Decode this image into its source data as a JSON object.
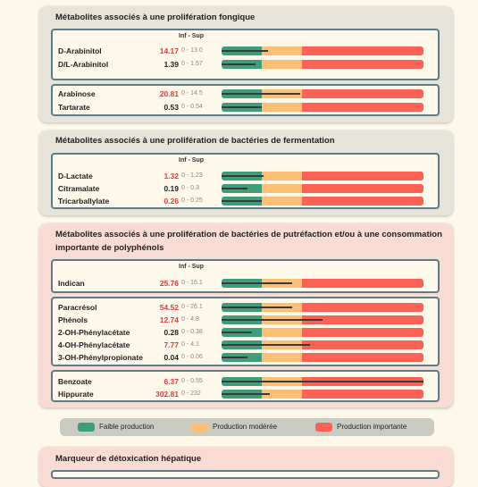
{
  "colors": {
    "low": "#3e9e7a",
    "moderate": "#fbbf75",
    "high": "#fa6256"
  },
  "sections": [
    {
      "title": "Métabolites associés à une prolifération fongique",
      "header": "Inf - Sup",
      "groups": [
        [
          {
            "name": "D-Arabinitol",
            "value": "14.17",
            "ref": "0 - 13.0",
            "status": "high",
            "level": 0.23
          },
          {
            "name": "D/L-Arabinitol",
            "value": "1.39",
            "ref": "0 - 1.57",
            "status": "normal",
            "level": 0.17
          }
        ],
        [
          {
            "name": "Arabinose",
            "value": "20.81",
            "ref": "0 - 14.5",
            "status": "high",
            "level": 0.39
          },
          {
            "name": "Tartarate",
            "value": "0.53",
            "ref": "0 - 0.54",
            "status": "normal",
            "level": 0.2
          }
        ]
      ]
    },
    {
      "title": "Métabolites associés à une prolifération de bactéries de fermentation",
      "header": "Inf - Sup",
      "groups": [
        [
          {
            "name": "D-Lactate",
            "value": "1.32",
            "ref": "0 - 1.23",
            "status": "high",
            "level": 0.21
          },
          {
            "name": "Citramalate",
            "value": "0.19",
            "ref": "0 - 0.3",
            "status": "normal",
            "level": 0.13
          },
          {
            "name": "Tricarballylate",
            "value": "0.26",
            "ref": "0 - 0.25",
            "status": "high",
            "level": 0.2
          }
        ]
      ]
    },
    {
      "title": "Métabolites associés à une prolifération de bactéries de putréfaction et/ou à une consommation importante de polyphénols",
      "header": "Inf - Sup",
      "groups": [
        [
          {
            "name": "Indican",
            "value": "25.76",
            "ref": "0 - 16.1",
            "status": "high",
            "level": 0.35
          }
        ],
        [
          {
            "name": "Paracrésol",
            "value": "54.52",
            "ref": "0 - 26.1",
            "status": "high",
            "level": 0.35
          },
          {
            "name": "Phénols",
            "value": "12.74",
            "ref": "0 - 4.8",
            "status": "high",
            "level": 0.5
          },
          {
            "name": "2-OH-Phénylacétate",
            "value": "0.28",
            "ref": "0 - 0.38",
            "status": "normal",
            "level": 0.15
          },
          {
            "name": "4-OH-Phénylacétate",
            "value": "7.77",
            "ref": "0 - 4.1",
            "status": "high",
            "level": 0.44
          },
          {
            "name": "3-OH-Phénylpropionate",
            "value": "0.04",
            "ref": "0 - 0.06",
            "status": "normal",
            "level": 0.13
          }
        ],
        [
          {
            "name": "Benzoate",
            "value": "6.37",
            "ref": "0 - 0.55",
            "status": "high",
            "level": 1.0
          },
          {
            "name": "Hippurate",
            "value": "302.81",
            "ref": "0 - 232",
            "status": "high",
            "level": 0.24
          }
        ]
      ]
    },
    {
      "title": "Marqueur de détoxication hépatique",
      "header": "",
      "groups": [
        []
      ]
    }
  ],
  "legend": [
    {
      "label": "Faible production",
      "key": "low"
    },
    {
      "label": "Production modérée",
      "key": "moderate"
    },
    {
      "label": "Production importante",
      "key": "high"
    }
  ]
}
